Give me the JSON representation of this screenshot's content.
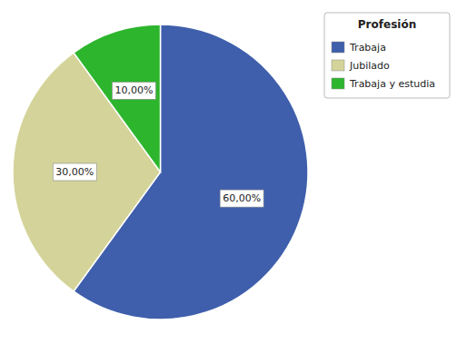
{
  "chart_data": {
    "type": "pie",
    "categories": [
      "Trabaja",
      "Jubilado",
      "Trabaja y estudia"
    ],
    "values": [
      60,
      30,
      10
    ],
    "value_labels": [
      "60,00%",
      "30,00%",
      "10,00%"
    ],
    "colors": [
      "#3f5fac",
      "#d4d49a",
      "#2db52d"
    ],
    "data_labels": true,
    "legend": "upper right",
    "legend_title": "Profesión"
  }
}
